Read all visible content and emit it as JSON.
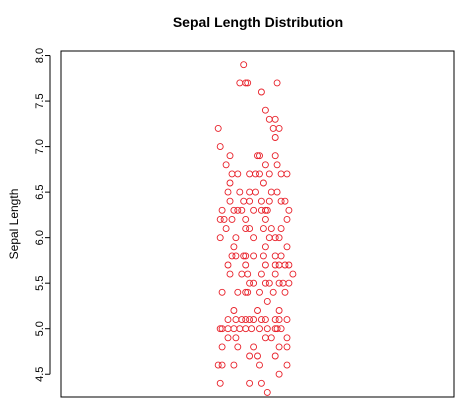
{
  "chart_data": {
    "type": "scatter",
    "title": "Sepal Length Distribution",
    "xlabel": "",
    "ylabel": "Sepal Length",
    "ylim": [
      4.25,
      8.05
    ],
    "xlim": [
      0,
      1
    ],
    "y_ticks": [
      4.5,
      5.0,
      5.5,
      6.0,
      6.5,
      7.0,
      7.5,
      8.0
    ],
    "y_tick_labels": [
      "4.5",
      "5.0",
      "5.5",
      "6.0",
      "6.5",
      "7.0",
      "7.5",
      "8.0"
    ],
    "grid": false,
    "legend": "none",
    "marker": "open-circle",
    "color": "#e8212a",
    "points": [
      [
        0.465,
        7.9
      ],
      [
        0.455,
        7.7
      ],
      [
        0.47,
        7.7
      ],
      [
        0.475,
        7.7
      ],
      [
        0.55,
        7.7
      ],
      [
        0.51,
        7.6
      ],
      [
        0.52,
        7.4
      ],
      [
        0.53,
        7.3
      ],
      [
        0.545,
        7.3
      ],
      [
        0.4,
        7.2
      ],
      [
        0.54,
        7.2
      ],
      [
        0.555,
        7.2
      ],
      [
        0.545,
        7.1
      ],
      [
        0.405,
        7.0
      ],
      [
        0.43,
        6.9
      ],
      [
        0.5,
        6.9
      ],
      [
        0.505,
        6.9
      ],
      [
        0.545,
        6.9
      ],
      [
        0.42,
        6.8
      ],
      [
        0.52,
        6.8
      ],
      [
        0.55,
        6.8
      ],
      [
        0.435,
        6.7
      ],
      [
        0.45,
        6.7
      ],
      [
        0.48,
        6.7
      ],
      [
        0.495,
        6.7
      ],
      [
        0.505,
        6.7
      ],
      [
        0.53,
        6.7
      ],
      [
        0.56,
        6.7
      ],
      [
        0.575,
        6.7
      ],
      [
        0.43,
        6.6
      ],
      [
        0.515,
        6.6
      ],
      [
        0.425,
        6.5
      ],
      [
        0.455,
        6.5
      ],
      [
        0.48,
        6.5
      ],
      [
        0.495,
        6.5
      ],
      [
        0.535,
        6.5
      ],
      [
        0.55,
        6.5
      ],
      [
        0.43,
        6.4
      ],
      [
        0.465,
        6.4
      ],
      [
        0.48,
        6.4
      ],
      [
        0.51,
        6.4
      ],
      [
        0.53,
        6.4
      ],
      [
        0.56,
        6.4
      ],
      [
        0.57,
        6.4
      ],
      [
        0.41,
        6.3
      ],
      [
        0.44,
        6.3
      ],
      [
        0.45,
        6.3
      ],
      [
        0.46,
        6.3
      ],
      [
        0.49,
        6.3
      ],
      [
        0.51,
        6.3
      ],
      [
        0.52,
        6.3
      ],
      [
        0.525,
        6.3
      ],
      [
        0.58,
        6.3
      ],
      [
        0.405,
        6.2
      ],
      [
        0.415,
        6.2
      ],
      [
        0.435,
        6.2
      ],
      [
        0.47,
        6.2
      ],
      [
        0.52,
        6.2
      ],
      [
        0.575,
        6.2
      ],
      [
        0.42,
        6.1
      ],
      [
        0.47,
        6.1
      ],
      [
        0.48,
        6.1
      ],
      [
        0.515,
        6.1
      ],
      [
        0.535,
        6.1
      ],
      [
        0.56,
        6.1
      ],
      [
        0.405,
        6.0
      ],
      [
        0.445,
        6.0
      ],
      [
        0.49,
        6.0
      ],
      [
        0.53,
        6.0
      ],
      [
        0.545,
        6.0
      ],
      [
        0.555,
        6.0
      ],
      [
        0.44,
        5.9
      ],
      [
        0.52,
        5.9
      ],
      [
        0.575,
        5.9
      ],
      [
        0.435,
        5.8
      ],
      [
        0.445,
        5.8
      ],
      [
        0.465,
        5.8
      ],
      [
        0.47,
        5.8
      ],
      [
        0.49,
        5.8
      ],
      [
        0.515,
        5.8
      ],
      [
        0.545,
        5.8
      ],
      [
        0.56,
        5.8
      ],
      [
        0.425,
        5.7
      ],
      [
        0.47,
        5.7
      ],
      [
        0.52,
        5.7
      ],
      [
        0.545,
        5.7
      ],
      [
        0.555,
        5.7
      ],
      [
        0.57,
        5.7
      ],
      [
        0.58,
        5.7
      ],
      [
        0.43,
        5.6
      ],
      [
        0.46,
        5.6
      ],
      [
        0.475,
        5.6
      ],
      [
        0.51,
        5.6
      ],
      [
        0.545,
        5.6
      ],
      [
        0.59,
        5.6
      ],
      [
        0.48,
        5.5
      ],
      [
        0.49,
        5.5
      ],
      [
        0.52,
        5.5
      ],
      [
        0.53,
        5.5
      ],
      [
        0.555,
        5.5
      ],
      [
        0.565,
        5.5
      ],
      [
        0.58,
        5.5
      ],
      [
        0.41,
        5.4
      ],
      [
        0.45,
        5.4
      ],
      [
        0.47,
        5.4
      ],
      [
        0.475,
        5.4
      ],
      [
        0.505,
        5.4
      ],
      [
        0.54,
        5.4
      ],
      [
        0.57,
        5.4
      ],
      [
        0.525,
        5.3
      ],
      [
        0.44,
        5.2
      ],
      [
        0.5,
        5.2
      ],
      [
        0.555,
        5.2
      ],
      [
        0.425,
        5.1
      ],
      [
        0.445,
        5.1
      ],
      [
        0.46,
        5.1
      ],
      [
        0.47,
        5.1
      ],
      [
        0.48,
        5.1
      ],
      [
        0.49,
        5.1
      ],
      [
        0.51,
        5.1
      ],
      [
        0.52,
        5.1
      ],
      [
        0.545,
        5.1
      ],
      [
        0.555,
        5.1
      ],
      [
        0.575,
        5.1
      ],
      [
        0.405,
        5.0
      ],
      [
        0.41,
        5.0
      ],
      [
        0.425,
        5.0
      ],
      [
        0.44,
        5.0
      ],
      [
        0.455,
        5.0
      ],
      [
        0.47,
        5.0
      ],
      [
        0.485,
        5.0
      ],
      [
        0.505,
        5.0
      ],
      [
        0.525,
        5.0
      ],
      [
        0.545,
        5.0
      ],
      [
        0.55,
        5.0
      ],
      [
        0.56,
        5.0
      ],
      [
        0.425,
        4.9
      ],
      [
        0.445,
        4.9
      ],
      [
        0.52,
        4.9
      ],
      [
        0.535,
        4.9
      ],
      [
        0.575,
        4.9
      ],
      [
        0.41,
        4.8
      ],
      [
        0.45,
        4.8
      ],
      [
        0.49,
        4.8
      ],
      [
        0.555,
        4.8
      ],
      [
        0.575,
        4.8
      ],
      [
        0.48,
        4.7
      ],
      [
        0.5,
        4.7
      ],
      [
        0.545,
        4.7
      ],
      [
        0.4,
        4.6
      ],
      [
        0.41,
        4.6
      ],
      [
        0.44,
        4.6
      ],
      [
        0.505,
        4.6
      ],
      [
        0.575,
        4.6
      ],
      [
        0.555,
        4.5
      ],
      [
        0.405,
        4.4
      ],
      [
        0.48,
        4.4
      ],
      [
        0.51,
        4.4
      ],
      [
        0.525,
        4.3
      ]
    ]
  }
}
